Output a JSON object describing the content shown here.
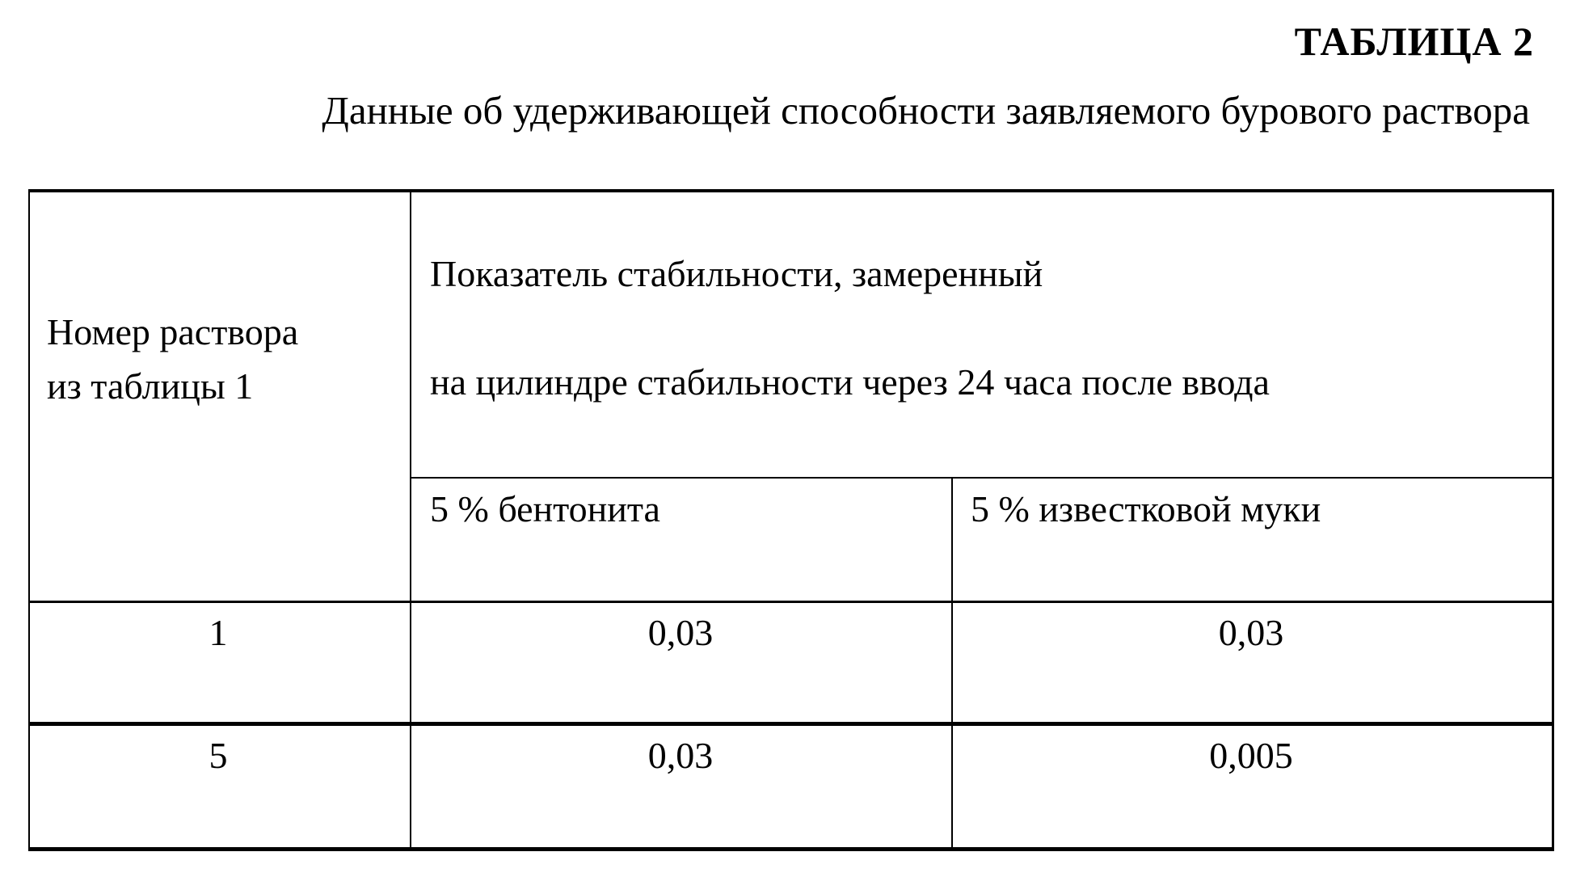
{
  "title": "ТАБЛИЦА 2",
  "subtitle": "Данные об удерживающей способности заявляемого бурового раствора",
  "table": {
    "header_col1_line1": "Номер раствора",
    "header_col1_line2": "из таблицы 1",
    "header_group_line1": "Показатель стабильности, замеренный",
    "header_group_line2": "на цилиндре стабильности через 24 часа после ввода",
    "subheaders": [
      "5 % бентонита",
      "5 % известковой муки"
    ],
    "rows": [
      {
        "number": "1",
        "bentonite": "0,03",
        "lime_flour": "0,03"
      },
      {
        "number": "5",
        "bentonite": "0,03",
        "lime_flour": "0,005"
      }
    ]
  }
}
